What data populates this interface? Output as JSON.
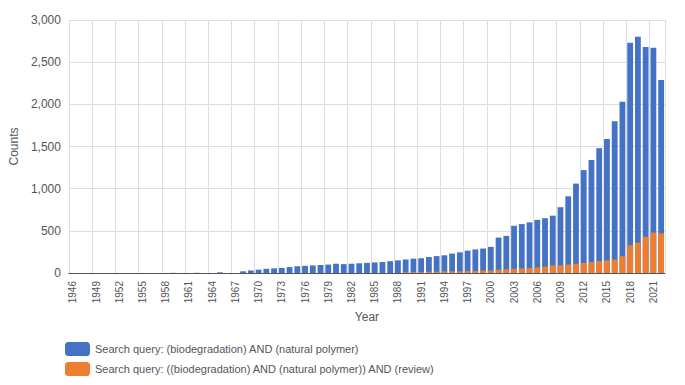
{
  "chart_data": {
    "type": "bar",
    "xlabel": "Year",
    "ylabel": "Counts",
    "categories": [
      "1946",
      null,
      null,
      "1949",
      null,
      null,
      "1952",
      null,
      null,
      "1955",
      null,
      null,
      "1958",
      null,
      null,
      "1961",
      null,
      null,
      "1964",
      null,
      null,
      "1967",
      null,
      null,
      "1970",
      null,
      null,
      "1973",
      null,
      null,
      "1976",
      null,
      null,
      "1979",
      null,
      null,
      "1982",
      null,
      null,
      "1985",
      null,
      null,
      "1988",
      null,
      null,
      "1991",
      null,
      null,
      "1994",
      null,
      null,
      "1997",
      null,
      null,
      "2000",
      null,
      null,
      "2003",
      null,
      null,
      "2006",
      null,
      null,
      "2009",
      null,
      null,
      "2012",
      null,
      null,
      "2015",
      null,
      null,
      "2018",
      null,
      null,
      "2021",
      null
    ],
    "series": [
      {
        "name": "Search query: (biodegradation) AND (natural polymer)",
        "color": "#4472C4",
        "values": [
          0,
          0,
          0,
          0,
          0,
          0,
          0,
          0,
          0,
          0,
          0,
          0,
          0,
          2,
          0,
          0,
          2,
          0,
          0,
          8,
          0,
          0,
          20,
          30,
          40,
          50,
          55,
          60,
          70,
          80,
          85,
          90,
          95,
          100,
          110,
          105,
          110,
          115,
          120,
          125,
          130,
          140,
          150,
          160,
          170,
          175,
          190,
          200,
          210,
          230,
          245,
          265,
          280,
          290,
          310,
          420,
          440,
          560,
          580,
          600,
          630,
          650,
          680,
          780,
          910,
          1060,
          1220,
          1340,
          1480,
          1590,
          1800,
          2030,
          2730,
          2800,
          2680,
          2670,
          2290
        ]
      },
      {
        "name": "Search query: ((biodegradation) AND (natural polymer)) AND (review)",
        "color": "#ED7D31",
        "values": [
          0,
          0,
          0,
          0,
          0,
          0,
          0,
          0,
          0,
          0,
          0,
          0,
          0,
          0,
          0,
          0,
          0,
          0,
          0,
          0,
          0,
          0,
          0,
          0,
          0,
          0,
          0,
          0,
          0,
          0,
          0,
          0,
          0,
          0,
          0,
          0,
          0,
          0,
          0,
          0,
          0,
          0,
          0,
          10,
          10,
          10,
          15,
          15,
          20,
          20,
          20,
          25,
          25,
          30,
          30,
          40,
          45,
          50,
          55,
          60,
          65,
          75,
          90,
          90,
          100,
          110,
          120,
          130,
          140,
          150,
          160,
          200,
          330,
          360,
          430,
          480,
          470
        ]
      }
    ],
    "ylim": [
      0,
      3000
    ],
    "yticks": [
      0,
      500,
      1000,
      1500,
      2000,
      2500,
      3000
    ],
    "grid": true,
    "legend": "lower left"
  }
}
